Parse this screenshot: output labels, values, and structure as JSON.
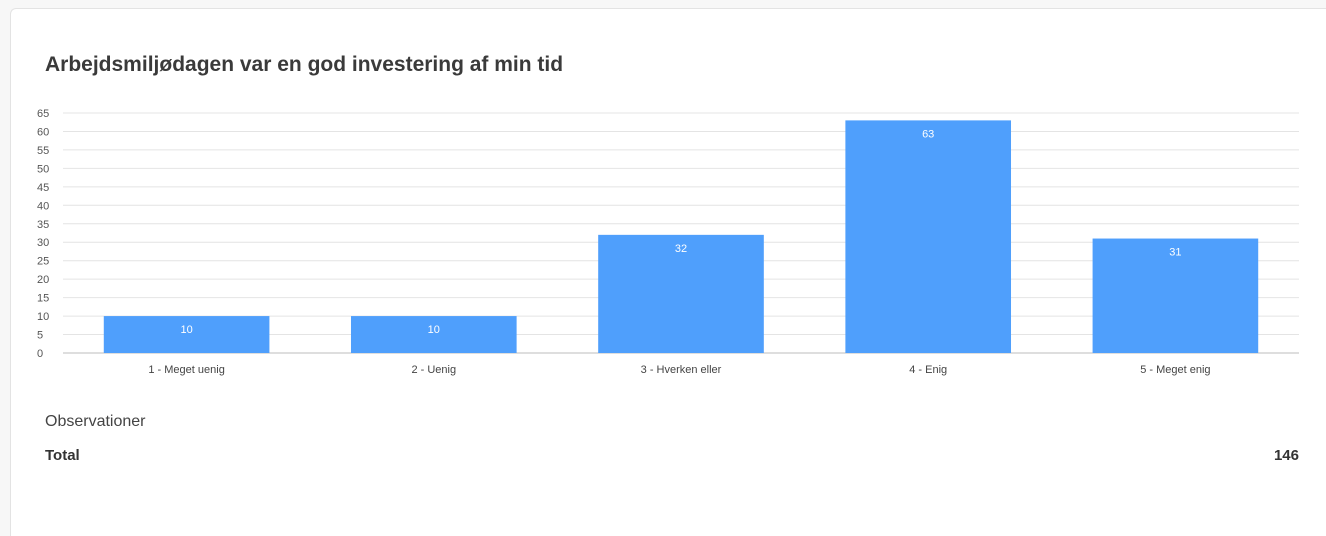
{
  "chart_data": {
    "type": "bar",
    "title": "Arbejdsmiljødagen var en god investering af min tid",
    "categories": [
      "1 - Meget uenig",
      "2 - Uenig",
      "3 - Hverken eller",
      "4 - Enig",
      "5 - Meget enig"
    ],
    "values": [
      10,
      10,
      32,
      63,
      31
    ],
    "xlabel": "",
    "ylabel": "",
    "ylim": [
      0,
      65
    ],
    "yticks": [
      0,
      5,
      10,
      15,
      20,
      25,
      30,
      35,
      40,
      45,
      50,
      55,
      60,
      65
    ],
    "grid": true,
    "bar_color": "#4f9ffc",
    "data_labels": true
  },
  "summary": {
    "observations_label": "Observationer",
    "total_label": "Total",
    "total_value": "146"
  }
}
